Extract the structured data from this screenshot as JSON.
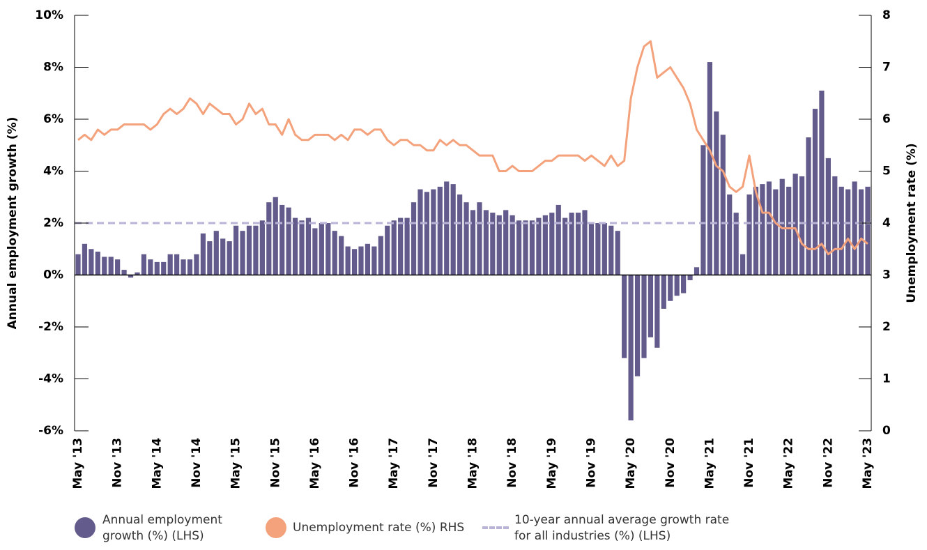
{
  "chart_data": {
    "type": "bar-line",
    "y_label": "Annual employment growth (%)",
    "y2_label": "Unemployment rate (%)",
    "categories": [
      "May '13",
      null,
      null,
      null,
      null,
      null,
      "Nov '13",
      null,
      null,
      null,
      null,
      null,
      "May '14",
      null,
      null,
      null,
      null,
      null,
      "Nov '14",
      null,
      null,
      null,
      null,
      null,
      "May '15",
      null,
      null,
      null,
      null,
      null,
      "Nov '15",
      null,
      null,
      null,
      null,
      null,
      "May '16",
      null,
      null,
      null,
      null,
      null,
      "Nov '16",
      null,
      null,
      null,
      null,
      null,
      "May '17",
      null,
      null,
      null,
      null,
      null,
      "Nov '17",
      null,
      null,
      null,
      null,
      null,
      "May '18",
      null,
      null,
      null,
      null,
      null,
      "Nov '18",
      null,
      null,
      null,
      null,
      null,
      "May '19",
      null,
      null,
      null,
      null,
      null,
      "Nov '19",
      null,
      null,
      null,
      null,
      null,
      "May '20",
      null,
      null,
      null,
      null,
      null,
      "Nov '20",
      null,
      null,
      null,
      null,
      null,
      "May '21",
      null,
      null,
      null,
      null,
      null,
      "Nov '21",
      null,
      null,
      null,
      null,
      null,
      "May '22",
      null,
      null,
      null,
      null,
      null,
      "Nov '22",
      null,
      null,
      null,
      null,
      null,
      "May '23"
    ],
    "series": [
      {
        "name": "Annual employment growth (%) (LHS)",
        "type": "bar",
        "color": "#625b8b",
        "values": [
          0.8,
          1.2,
          1.0,
          0.9,
          0.7,
          0.7,
          0.6,
          0.2,
          -0.1,
          0.1,
          0.8,
          0.6,
          0.5,
          0.5,
          0.8,
          0.8,
          0.6,
          0.6,
          0.8,
          1.6,
          1.3,
          1.7,
          1.4,
          1.3,
          1.9,
          1.7,
          1.9,
          1.9,
          2.1,
          2.8,
          3.0,
          2.7,
          2.6,
          2.2,
          2.1,
          2.2,
          1.8,
          2.0,
          2.0,
          1.7,
          1.5,
          1.1,
          1.0,
          1.1,
          1.2,
          1.1,
          1.5,
          1.9,
          2.1,
          2.2,
          2.2,
          2.8,
          3.3,
          3.2,
          3.3,
          3.4,
          3.6,
          3.5,
          3.1,
          2.8,
          2.5,
          2.8,
          2.5,
          2.4,
          2.3,
          2.5,
          2.3,
          2.1,
          2.1,
          2.1,
          2.2,
          2.3,
          2.4,
          2.7,
          2.2,
          2.4,
          2.4,
          2.5,
          2.0,
          2.0,
          2.0,
          1.9,
          1.7,
          -3.2,
          -5.6,
          -3.9,
          -3.2,
          -2.4,
          -2.8,
          -1.3,
          -1.0,
          -0.8,
          -0.7,
          -0.2,
          0.3,
          5.0,
          8.2,
          6.3,
          5.4,
          3.1,
          2.4,
          0.8,
          3.1,
          3.4,
          3.5,
          3.6,
          3.3,
          3.7,
          3.4,
          3.9,
          3.8,
          5.3,
          6.4,
          7.1,
          4.5,
          3.8,
          3.4,
          3.3,
          3.6,
          3.3,
          3.4
        ]
      },
      {
        "name": "Unemployment rate (%) RHS",
        "type": "line",
        "axis": "y2",
        "color": "#f4a27c",
        "values": [
          5.6,
          5.7,
          5.6,
          5.8,
          5.7,
          5.8,
          5.8,
          5.9,
          5.9,
          5.9,
          5.9,
          5.8,
          5.9,
          6.1,
          6.2,
          6.1,
          6.2,
          6.4,
          6.3,
          6.1,
          6.3,
          6.2,
          6.1,
          6.1,
          5.9,
          6.0,
          6.3,
          6.1,
          6.2,
          5.9,
          5.9,
          5.7,
          6.0,
          5.7,
          5.6,
          5.6,
          5.7,
          5.7,
          5.7,
          5.6,
          5.7,
          5.6,
          5.8,
          5.8,
          5.7,
          5.8,
          5.8,
          5.6,
          5.5,
          5.6,
          5.6,
          5.5,
          5.5,
          5.4,
          5.4,
          5.6,
          5.5,
          5.6,
          5.5,
          5.5,
          5.4,
          5.3,
          5.3,
          5.3,
          5.0,
          5.0,
          5.1,
          5.0,
          5.0,
          5.0,
          5.1,
          5.2,
          5.2,
          5.3,
          5.3,
          5.3,
          5.3,
          5.2,
          5.3,
          5.2,
          5.1,
          5.3,
          5.1,
          5.2,
          6.4,
          7.0,
          7.4,
          7.5,
          6.8,
          6.9,
          7.0,
          6.8,
          6.6,
          6.3,
          5.8,
          5.6,
          5.4,
          5.1,
          5.0,
          4.7,
          4.6,
          4.7,
          5.3,
          4.6,
          4.2,
          4.2,
          4.0,
          3.9,
          3.9,
          3.9,
          3.6,
          3.5,
          3.5,
          3.6,
          3.4,
          3.5,
          3.5,
          3.7,
          3.5,
          3.7,
          3.6
        ]
      }
    ],
    "reference_line": {
      "name": "10-year annual average growth rate for all industries (%) (LHS)",
      "value": 2,
      "color": "#b9b4d6",
      "dashed": true
    },
    "ylim": [
      -6,
      10
    ],
    "yticks": [
      {
        "value": -6,
        "label": "-6%"
      },
      {
        "value": -4,
        "label": "-4%"
      },
      {
        "value": -2,
        "label": "-2%"
      },
      {
        "value": 0,
        "label": "0%"
      },
      {
        "value": 2,
        "label": "2%"
      },
      {
        "value": 4,
        "label": "4%"
      },
      {
        "value": 6,
        "label": "6%"
      },
      {
        "value": 8,
        "label": "8%"
      },
      {
        "value": 10,
        "label": "10%"
      }
    ],
    "y2lim": [
      0,
      8
    ],
    "y2ticks": [
      0,
      1,
      2,
      3,
      4,
      5,
      6,
      7,
      8
    ],
    "legend": "bottom"
  }
}
